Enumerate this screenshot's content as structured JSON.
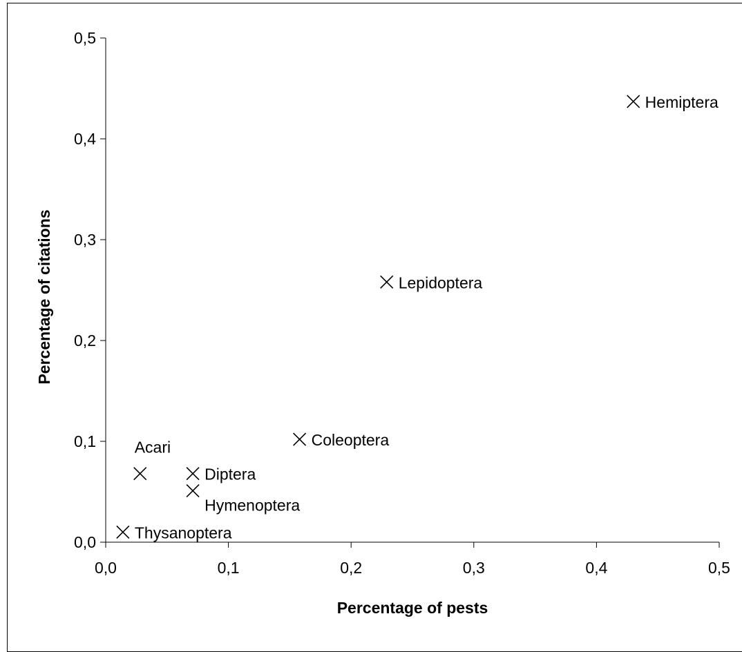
{
  "chart_data": {
    "type": "scatter",
    "title": "",
    "xlabel": "Percentage of pests",
    "ylabel": "Percentage of citations",
    "xlim": [
      0,
      0.5
    ],
    "ylim": [
      0,
      0.5
    ],
    "x_ticks": [
      "0,0",
      "0,1",
      "0,2",
      "0,3",
      "0,4",
      "0,5"
    ],
    "y_ticks": [
      "0,0",
      "0,1",
      "0,2",
      "0,3",
      "0,4",
      "0,5"
    ],
    "grid": false,
    "marker": "x",
    "points": [
      {
        "label": "Hemiptera",
        "x": 0.43,
        "y": 0.437,
        "label_pos": "right"
      },
      {
        "label": "Lepidoptera",
        "x": 0.229,
        "y": 0.258,
        "label_pos": "right"
      },
      {
        "label": "Coleoptera",
        "x": 0.158,
        "y": 0.102,
        "label_pos": "right"
      },
      {
        "label": "Acari",
        "x": 0.028,
        "y": 0.068,
        "label_pos": "above"
      },
      {
        "label": "Diptera",
        "x": 0.071,
        "y": 0.068,
        "label_pos": "right"
      },
      {
        "label": "Hymenoptera",
        "x": 0.071,
        "y": 0.051,
        "label_pos": "below-right"
      },
      {
        "label": "Thysanoptera",
        "x": 0.014,
        "y": 0.01,
        "label_pos": "right"
      }
    ]
  }
}
